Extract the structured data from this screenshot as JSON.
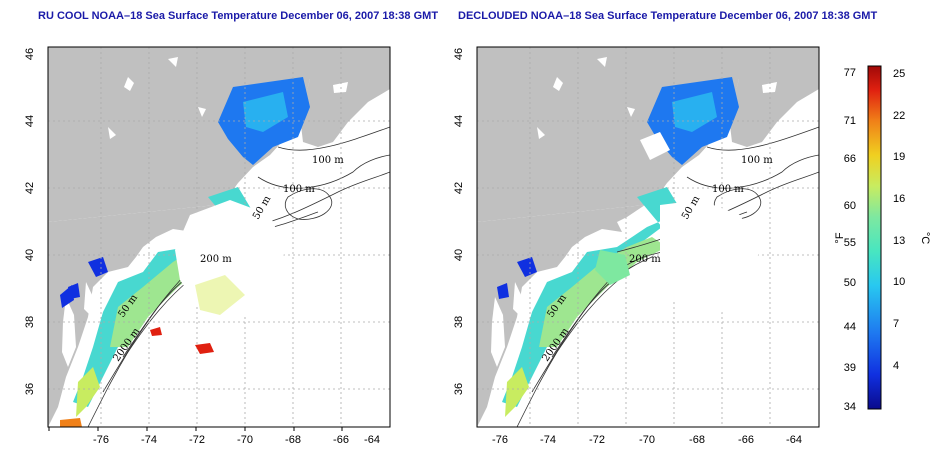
{
  "titles": {
    "left": "RU COOL NOAA–18 Sea Surface Temperature December 06, 2007 18:38 GMT",
    "right": "DECLOUDED NOAA–18 Sea Surface Temperature December 06, 2007 18:38 GMT"
  },
  "axes": {
    "lon_ticks": [
      "-76",
      "-74",
      "-72",
      "-70",
      "-68",
      "-66",
      "-64"
    ],
    "lat_ticks": [
      "36",
      "38",
      "40",
      "42",
      "44",
      "46"
    ]
  },
  "contour_labels": {
    "m100a": "100 m",
    "m100b": "100 m",
    "m50a": "50 m",
    "m200": "200 m",
    "m50b": "50 m",
    "m2000": "2000 m"
  },
  "colorbar": {
    "unit_f": "°F",
    "unit_c": "°C",
    "f_ticks": [
      "77",
      "71",
      "66",
      "60",
      "55",
      "50",
      "44",
      "39",
      "34"
    ],
    "c_ticks": [
      "25",
      "22",
      "19",
      "16",
      "13",
      "10",
      "7",
      "4"
    ]
  },
  "colors": {
    "land": "#c0c0c0",
    "title": "#1a1aa8",
    "ramp": [
      "#0a0a8c",
      "#1030e0",
      "#1e78f0",
      "#28c8f0",
      "#48e6c0",
      "#7ee8a0",
      "#c8ec60",
      "#f0d020",
      "#f08018",
      "#e02010",
      "#a00808"
    ]
  }
}
